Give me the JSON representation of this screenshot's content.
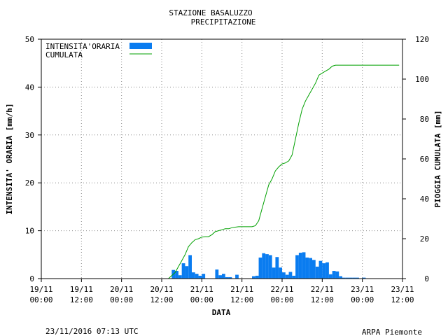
{
  "chart_data": {
    "type": "bar",
    "title": "STAZIONE BASALUZZO",
    "subtitle": "PRECIPITAZIONE",
    "xlabel": "DATA",
    "ylabel_left": "INTENSITA' ORARIA [mm/h]",
    "ylabel_right": "PIOGGIA CUMULATA [mm]",
    "ylim_left": [
      0,
      50
    ],
    "ylim_right": [
      0,
      120
    ],
    "yticks_left": [
      "0",
      "10",
      "20",
      "30",
      "40",
      "50"
    ],
    "yticks_right": [
      "0",
      "20",
      "40",
      "60",
      "80",
      "100",
      "120"
    ],
    "xticks": [
      {
        "date": "19/11",
        "time": "00:00"
      },
      {
        "date": "19/11",
        "time": "12:00"
      },
      {
        "date": "20/11",
        "time": "00:00"
      },
      {
        "date": "20/11",
        "time": "12:00"
      },
      {
        "date": "21/11",
        "time": "00:00"
      },
      {
        "date": "21/11",
        "time": "12:00"
      },
      {
        "date": "22/11",
        "time": "00:00"
      },
      {
        "date": "22/11",
        "time": "12:00"
      },
      {
        "date": "23/11",
        "time": "00:00"
      },
      {
        "date": "23/11",
        "time": "12:00"
      }
    ],
    "grid": true,
    "legend_position": "top-left",
    "series": [
      {
        "name": "INTENSITA'ORARIA",
        "type": "bar",
        "color": "#0a7cf0",
        "x_hours": [
          39,
          40,
          41,
          42,
          43,
          44,
          45,
          46,
          47,
          48,
          52,
          53,
          54,
          55,
          56,
          58,
          63,
          64,
          65,
          66,
          67,
          68,
          69,
          70,
          71,
          72,
          73,
          74,
          75,
          76,
          77,
          78,
          79,
          80,
          81,
          82,
          83,
          84,
          85,
          86,
          87,
          88,
          89,
          90,
          91,
          92,
          93,
          94,
          96
        ],
        "values": [
          1.8,
          1.6,
          0.7,
          3.2,
          2.6,
          4.9,
          1.3,
          1.0,
          0.6,
          1.0,
          1.9,
          0.7,
          1.0,
          0.3,
          0.3,
          0.8,
          0.5,
          0.6,
          4.4,
          5.3,
          5.1,
          4.9,
          2.3,
          4.5,
          2.3,
          1.3,
          0.8,
          1.4,
          0.6,
          4.9,
          5.4,
          5.5,
          4.4,
          4.3,
          3.9,
          2.5,
          3.7,
          3.2,
          3.4,
          0.9,
          1.6,
          1.5,
          0.5,
          0.2,
          0.2,
          0.2,
          0.2,
          0.2,
          0.2
        ]
      },
      {
        "name": "CUMULATA",
        "type": "line",
        "axis": "right",
        "color": "#00a000",
        "x_hours": [
          0,
          38,
          40,
          41,
          42,
          43,
          44,
          45,
          46,
          47,
          48,
          49,
          50,
          51,
          52,
          53,
          54,
          55,
          56,
          57,
          58,
          59,
          60,
          61,
          62,
          63,
          64,
          65,
          66,
          67,
          68,
          69,
          70,
          71,
          72,
          73,
          74,
          75,
          76,
          77,
          78,
          79,
          80,
          81,
          82,
          83,
          84,
          85,
          86,
          87,
          88,
          89,
          90,
          91,
          92,
          93,
          94,
          95,
          96,
          97,
          98,
          99,
          100,
          101,
          102,
          103,
          104,
          105,
          106,
          107
        ],
        "values": [
          0,
          0,
          3,
          6,
          9,
          12,
          16,
          18,
          19.5,
          20,
          20.8,
          21,
          21,
          22,
          23.5,
          24,
          24.5,
          25,
          25,
          25.5,
          25.8,
          26,
          26,
          26,
          26,
          26,
          26.5,
          29,
          35,
          41,
          47,
          50,
          54,
          56,
          57.5,
          58,
          59,
          62,
          70,
          78,
          85,
          89,
          92,
          95,
          98,
          102,
          103,
          104,
          105,
          106.5,
          107,
          107,
          107,
          107,
          107,
          107,
          107,
          107,
          107,
          107,
          107,
          107,
          107,
          107,
          107,
          107,
          107,
          107,
          107,
          107
        ]
      }
    ]
  },
  "footer": {
    "timestamp": "23/11/2016 07:13 UTC",
    "credit": "ARPA Piemonte",
    "credit_color": "#0a1a8c"
  }
}
